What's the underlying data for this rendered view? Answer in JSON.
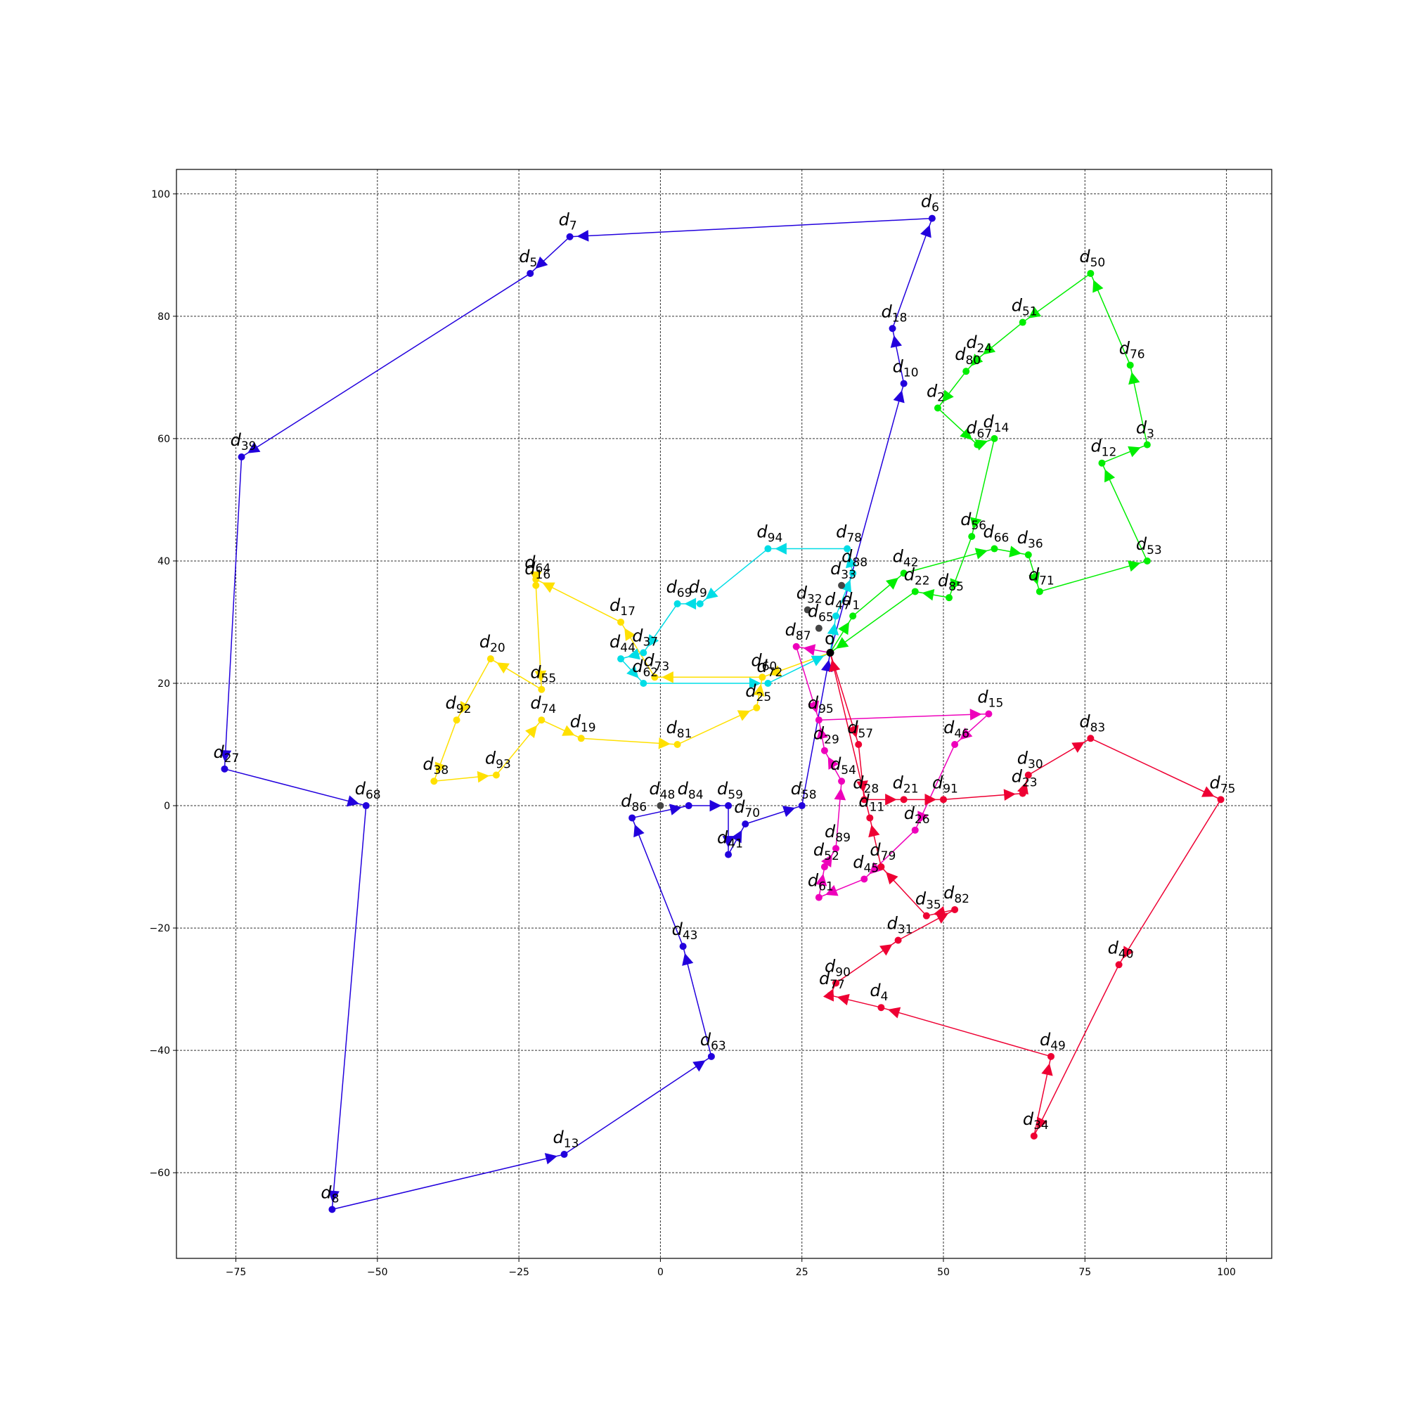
{
  "chart_data": {
    "type": "scatter",
    "title": "",
    "xlabel": "",
    "ylabel": "",
    "xlim": [
      -85.5,
      108
    ],
    "ylim": [
      -74,
      104
    ],
    "xticks": [
      -75,
      -50,
      -25,
      0,
      25,
      50,
      75,
      100
    ],
    "yticks": [
      -60,
      -40,
      -20,
      0,
      20,
      40,
      60,
      80,
      100
    ],
    "grid": true,
    "depot": {
      "label": "o",
      "x": 30,
      "y": 25,
      "color": "#000000"
    },
    "nodes": [
      {
        "id": "1",
        "x": 34,
        "y": 31
      },
      {
        "id": "2",
        "x": 49,
        "y": 65
      },
      {
        "id": "3",
        "x": 86,
        "y": 59
      },
      {
        "id": "4",
        "x": 39,
        "y": -33
      },
      {
        "id": "5",
        "x": -23,
        "y": 87
      },
      {
        "id": "6",
        "x": 48,
        "y": 96
      },
      {
        "id": "7",
        "x": -16,
        "y": 93
      },
      {
        "id": "8",
        "x": -58,
        "y": -66
      },
      {
        "id": "9",
        "x": 7,
        "y": 33
      },
      {
        "id": "10",
        "x": 43,
        "y": 69
      },
      {
        "id": "11",
        "x": 37,
        "y": -2
      },
      {
        "id": "12",
        "x": 78,
        "y": 56
      },
      {
        "id": "13",
        "x": -17,
        "y": -57
      },
      {
        "id": "14",
        "x": 59,
        "y": 60
      },
      {
        "id": "15",
        "x": 58,
        "y": 15
      },
      {
        "id": "16",
        "x": -22,
        "y": 36
      },
      {
        "id": "17",
        "x": -7,
        "y": 30
      },
      {
        "id": "18",
        "x": 41,
        "y": 78
      },
      {
        "id": "19",
        "x": -14,
        "y": 11
      },
      {
        "id": "20",
        "x": -30,
        "y": 24
      },
      {
        "id": "21",
        "x": 43,
        "y": 1
      },
      {
        "id": "22",
        "x": 45,
        "y": 35
      },
      {
        "id": "23",
        "x": 64,
        "y": 2
      },
      {
        "id": "24",
        "x": 56,
        "y": 73
      },
      {
        "id": "25",
        "x": 17,
        "y": 16
      },
      {
        "id": "26",
        "x": 45,
        "y": -4
      },
      {
        "id": "27",
        "x": -77,
        "y": 6
      },
      {
        "id": "28",
        "x": 36,
        "y": 1
      },
      {
        "id": "29",
        "x": 29,
        "y": 9
      },
      {
        "id": "30",
        "x": 65,
        "y": 5
      },
      {
        "id": "31",
        "x": 42,
        "y": -22
      },
      {
        "id": "32",
        "x": 26,
        "y": 32
      },
      {
        "id": "33",
        "x": 32,
        "y": 36
      },
      {
        "id": "34",
        "x": 66,
        "y": -54
      },
      {
        "id": "35",
        "x": 47,
        "y": -18
      },
      {
        "id": "36",
        "x": 65,
        "y": 41
      },
      {
        "id": "37",
        "x": -3,
        "y": 25
      },
      {
        "id": "38",
        "x": -40,
        "y": 4
      },
      {
        "id": "39",
        "x": -74,
        "y": 57
      },
      {
        "id": "40",
        "x": 81,
        "y": -26
      },
      {
        "id": "41",
        "x": 12,
        "y": -8
      },
      {
        "id": "42",
        "x": 43,
        "y": 38
      },
      {
        "id": "43",
        "x": 4,
        "y": -23
      },
      {
        "id": "44",
        "x": -7,
        "y": 24
      },
      {
        "id": "45",
        "x": 36,
        "y": -12
      },
      {
        "id": "46",
        "x": 52,
        "y": 10
      },
      {
        "id": "47",
        "x": 31,
        "y": 31
      },
      {
        "id": "48",
        "x": 0,
        "y": 0
      },
      {
        "id": "49",
        "x": 69,
        "y": -41
      },
      {
        "id": "50",
        "x": 76,
        "y": 87
      },
      {
        "id": "51",
        "x": 64,
        "y": 79
      },
      {
        "id": "52",
        "x": 29,
        "y": -10
      },
      {
        "id": "53",
        "x": 86,
        "y": 40
      },
      {
        "id": "54",
        "x": 32,
        "y": 4
      },
      {
        "id": "55",
        "x": -21,
        "y": 19
      },
      {
        "id": "56",
        "x": 55,
        "y": 44
      },
      {
        "id": "57",
        "x": 35,
        "y": 10
      },
      {
        "id": "58",
        "x": 25,
        "y": 0
      },
      {
        "id": "59",
        "x": 12,
        "y": 0
      },
      {
        "id": "60",
        "x": 18,
        "y": 21
      },
      {
        "id": "61",
        "x": 28,
        "y": -15
      },
      {
        "id": "62",
        "x": -3,
        "y": 20
      },
      {
        "id": "63",
        "x": 9,
        "y": -41
      },
      {
        "id": "64",
        "x": -22,
        "y": 37
      },
      {
        "id": "65",
        "x": 28,
        "y": 29
      },
      {
        "id": "66",
        "x": 59,
        "y": 42
      },
      {
        "id": "67",
        "x": 56,
        "y": 59
      },
      {
        "id": "68",
        "x": -52,
        "y": 0
      },
      {
        "id": "69",
        "x": 3,
        "y": 33
      },
      {
        "id": "70",
        "x": 15,
        "y": -3
      },
      {
        "id": "71",
        "x": 67,
        "y": 35
      },
      {
        "id": "72",
        "x": 19,
        "y": 20
      },
      {
        "id": "73",
        "x": -1,
        "y": 21
      },
      {
        "id": "74",
        "x": -21,
        "y": 14
      },
      {
        "id": "75",
        "x": 99,
        "y": 1
      },
      {
        "id": "76",
        "x": 83,
        "y": 72
      },
      {
        "id": "77",
        "x": 30,
        "y": -31
      },
      {
        "id": "78",
        "x": 33,
        "y": 42
      },
      {
        "id": "79",
        "x": 39,
        "y": -10
      },
      {
        "id": "80",
        "x": 54,
        "y": 71
      },
      {
        "id": "81",
        "x": 3,
        "y": 10
      },
      {
        "id": "82",
        "x": 52,
        "y": -17
      },
      {
        "id": "83",
        "x": 76,
        "y": 11
      },
      {
        "id": "84",
        "x": 5,
        "y": 0
      },
      {
        "id": "85",
        "x": 51,
        "y": 34
      },
      {
        "id": "86",
        "x": -5,
        "y": -2
      },
      {
        "id": "87",
        "x": 24,
        "y": 26
      },
      {
        "id": "88",
        "x": 34,
        "y": 38
      },
      {
        "id": "89",
        "x": 31,
        "y": -7
      },
      {
        "id": "90",
        "x": 31,
        "y": -29
      },
      {
        "id": "91",
        "x": 50,
        "y": 1
      },
      {
        "id": "92",
        "x": -36,
        "y": 14
      },
      {
        "id": "93",
        "x": -29,
        "y": 5
      },
      {
        "id": "94",
        "x": 19,
        "y": 42
      },
      {
        "id": "95",
        "x": 28,
        "y": 14
      }
    ],
    "routes": [
      {
        "color": "#2200dd",
        "path": [
          "o",
          "10",
          "18",
          "6",
          "7",
          "5",
          "39",
          "27",
          "68",
          "8",
          "13",
          "63",
          "43",
          "86",
          "84",
          "59",
          "41",
          "70",
          "58",
          "o"
        ]
      },
      {
        "color": "#00ee00",
        "path": [
          "o",
          "1",
          "42",
          "66",
          "36",
          "71",
          "53",
          "12",
          "3",
          "76",
          "50",
          "51",
          "24",
          "80",
          "2",
          "67",
          "14",
          "56",
          "85",
          "22",
          "o"
        ]
      },
      {
        "color": "#00dde6",
        "path": [
          "o",
          "47",
          "88",
          "78",
          "94",
          "9",
          "69",
          "37",
          "44",
          "62",
          "72",
          "o"
        ]
      },
      {
        "color": "#ffe000",
        "path": [
          "o",
          "60",
          "73",
          "17",
          "64",
          "16",
          "55",
          "20",
          "92",
          "38",
          "93",
          "74",
          "19",
          "81",
          "25",
          "60"
        ]
      },
      {
        "color": "#ee00bb",
        "path": [
          "o",
          "87",
          "95",
          "15",
          "46",
          "26",
          "45",
          "61",
          "52",
          "89",
          "54",
          "29",
          "95"
        ]
      },
      {
        "color": "#ee0033",
        "path": [
          "o",
          "57",
          "28",
          "21",
          "91",
          "23",
          "30",
          "83",
          "75",
          "40",
          "34",
          "49",
          "4",
          "77",
          "90",
          "31",
          "82",
          "35",
          "79",
          "11",
          "o"
        ]
      }
    ]
  }
}
